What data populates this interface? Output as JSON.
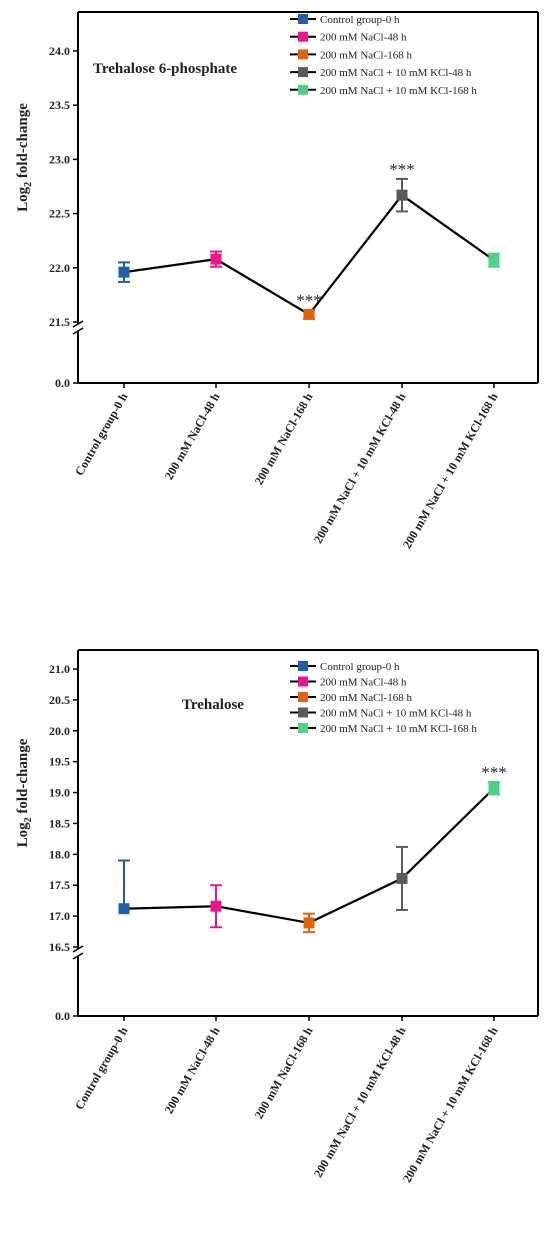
{
  "chart_data": [
    {
      "type": "line",
      "title": "Trehalose 6-phosphate",
      "ylabel": "Log",
      "ylabel_sub": "2",
      "ylabel_rest": " fold-change",
      "categories": [
        "Control group-0 h",
        "200 mM NaCl-48 h",
        "200 mM NaCl-168 h",
        "200 mM NaCl + 10 mM KCl-48 h",
        "200 mM NaCl + 10 mM KCl-168 h"
      ],
      "values": [
        21.96,
        22.08,
        21.57,
        22.67,
        22.07
      ],
      "errors": [
        0.09,
        0.07,
        0.04,
        0.15,
        0.06
      ],
      "annotations": [
        "",
        "",
        "***",
        "***",
        ""
      ],
      "ylim": [
        21.5,
        24.0
      ],
      "yticks": [
        21.5,
        22.0,
        22.5,
        23.0,
        23.5,
        24.0
      ],
      "ytick_labels": [
        "21.5",
        "22.0",
        "22.5",
        "23.0",
        "23.5",
        "24.0"
      ],
      "ybreak_base_label": "0.0",
      "colors": [
        "#1f5fa8",
        "#e8178a",
        "#e0620e",
        "#5a5a5a",
        "#4fcf88"
      ],
      "legend": [
        "Control group-0 h",
        "200 mM NaCl-48 h",
        "200 mM NaCl-168 h",
        "200 mM NaCl + 10 mM KCl-48 h",
        "200 mM NaCl + 10 mM KCl-168 h"
      ],
      "legend_position": "top-right",
      "grid": false
    },
    {
      "type": "line",
      "title": "Trehalose",
      "ylabel": "Log",
      "ylabel_sub": "2",
      "ylabel_rest": " fold-change",
      "categories": [
        "Control group-0 h",
        "200 mM NaCl-48 h",
        "200 mM NaCl-168 h",
        "200 mM NaCl + 10 mM KCl-48 h",
        "200 mM NaCl + 10 mM KCl-168 h"
      ],
      "values": [
        17.12,
        17.16,
        16.89,
        17.61,
        19.07
      ],
      "errors": [
        0.78,
        0.34,
        0.15,
        0.51,
        0.1
      ],
      "error_style": [
        "upper",
        "both",
        "both",
        "both",
        "both"
      ],
      "annotations": [
        "",
        "",
        "",
        "",
        "***"
      ],
      "ylim": [
        16.5,
        21.0
      ],
      "yticks": [
        16.5,
        17.0,
        17.5,
        18.0,
        18.5,
        19.0,
        19.5,
        20.0,
        20.5,
        21.0
      ],
      "ytick_labels": [
        "16.5",
        "17.0",
        "17.5",
        "18.0",
        "18.5",
        "19.0",
        "19.5",
        "20.0",
        "20.5",
        "21.0"
      ],
      "ybreak_base_label": "0.0",
      "colors": [
        "#1f5fa8",
        "#e8178a",
        "#e0620e",
        "#5a5a5a",
        "#4fcf88"
      ],
      "legend": [
        "Control group-0 h",
        "200 mM NaCl-48 h",
        "200 mM NaCl-168 h",
        "200 mM NaCl + 10 mM KCl-48 h",
        "200 mM NaCl + 10 mM KCl-168 h"
      ],
      "legend_position": "top-right",
      "grid": false
    }
  ]
}
